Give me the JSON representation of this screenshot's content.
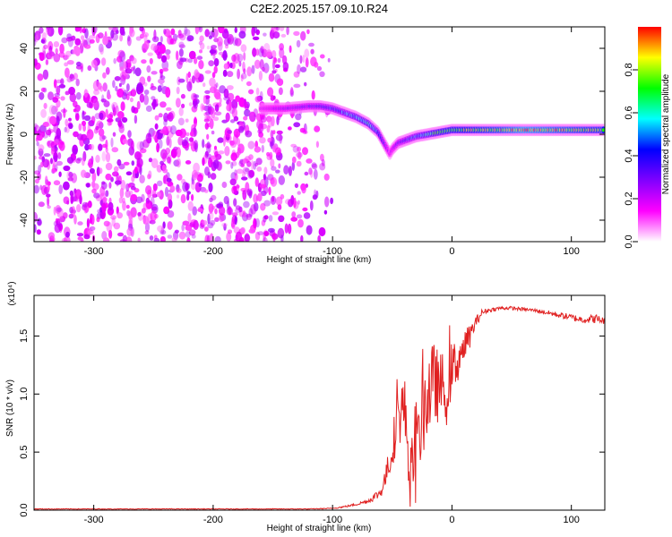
{
  "title": "C2E2.2025.157.09.10.R24",
  "chart_data": [
    {
      "type": "heatmap",
      "xlabel": "Height of straight line (km)",
      "ylabel": "Frequency (Hz)",
      "xlim": [
        -350,
        128
      ],
      "ylim": [
        -50,
        50
      ],
      "x_ticks": [
        -300,
        -200,
        -100,
        0,
        100
      ],
      "y_ticks": [
        -40,
        -20,
        0,
        20,
        40
      ],
      "colorbar": {
        "label": "Normalized spectral amplitude",
        "range": [
          0,
          1
        ],
        "ticks": [
          0.0,
          0.2,
          0.4,
          0.6,
          0.8
        ],
        "tick_labels": [
          "0.0",
          "0.2",
          "0.4",
          "0.6",
          "0.8"
        ],
        "colormap": [
          "#ffffff",
          "#ff00ff",
          "#8000ff",
          "#0000ff",
          "#00ffff",
          "#00ff00",
          "#ffff00",
          "#ff0000"
        ]
      },
      "noise_region": {
        "x_from": -350,
        "x_to": -95,
        "amplitude": 0.2
      },
      "ridge": {
        "x": [
          -160,
          -140,
          -120,
          -110,
          -100,
          -90,
          -80,
          -70,
          -62,
          -55,
          -52,
          -50,
          -45,
          -40,
          -30,
          -20,
          -10,
          0,
          20,
          40,
          60,
          80,
          100,
          128
        ],
        "y": [
          12,
          12,
          13,
          13,
          12,
          10,
          8,
          5,
          1,
          -6,
          -9,
          -7,
          -4,
          -3,
          -1,
          0,
          1,
          2,
          2,
          2,
          2,
          2,
          2,
          2
        ],
        "amplitude": [
          0.2,
          0.3,
          0.35,
          0.4,
          0.45,
          0.5,
          0.55,
          0.6,
          0.5,
          0.3,
          0.2,
          0.25,
          0.35,
          0.4,
          0.5,
          0.6,
          0.7,
          0.75,
          0.8,
          0.85,
          0.95,
          0.9,
          0.85,
          0.8
        ]
      }
    },
    {
      "type": "line",
      "xlabel": "Height of straight line (km)",
      "ylabel": "SNR (10 * v/v)",
      "y_multiplier": "(x10⁴)",
      "xlim": [
        -350,
        128
      ],
      "ylim": [
        0,
        1.85
      ],
      "x_ticks": [
        -300,
        -200,
        -100,
        0,
        100
      ],
      "y_ticks": [
        0.0,
        0.5,
        1.0,
        1.5
      ],
      "y_tick_labels": [
        "0.0",
        "0.5",
        "1.0",
        "1.5"
      ],
      "series": [
        {
          "color": "#e02020",
          "x": [
            -350,
            -120,
            -100,
            -90,
            -80,
            -70,
            -60,
            -55,
            -50,
            -45,
            -40,
            -35,
            -30,
            -25,
            -20,
            -15,
            -10,
            -5,
            0,
            5,
            10,
            15,
            20,
            25,
            30,
            40,
            50,
            60,
            70,
            80,
            90,
            100,
            110,
            120,
            128
          ],
          "y": [
            0.01,
            0.01,
            0.015,
            0.03,
            0.05,
            0.08,
            0.15,
            0.3,
            0.55,
            0.8,
            0.9,
            0.35,
            0.45,
            0.8,
            1.0,
            1.1,
            1.05,
            1.1,
            1.2,
            1.3,
            1.4,
            1.5,
            1.62,
            1.7,
            1.72,
            1.74,
            1.74,
            1.73,
            1.72,
            1.7,
            1.68,
            1.66,
            1.64,
            1.65,
            1.63
          ],
          "jitter": [
            0.003,
            0.003,
            0.004,
            0.008,
            0.01,
            0.02,
            0.05,
            0.1,
            0.18,
            0.25,
            0.3,
            0.25,
            0.3,
            0.35,
            0.4,
            0.35,
            0.3,
            0.3,
            0.25,
            0.2,
            0.15,
            0.1,
            0.05,
            0.03,
            0.02,
            0.015,
            0.015,
            0.015,
            0.015,
            0.02,
            0.025,
            0.03,
            0.03,
            0.04,
            0.03
          ]
        }
      ]
    }
  ]
}
